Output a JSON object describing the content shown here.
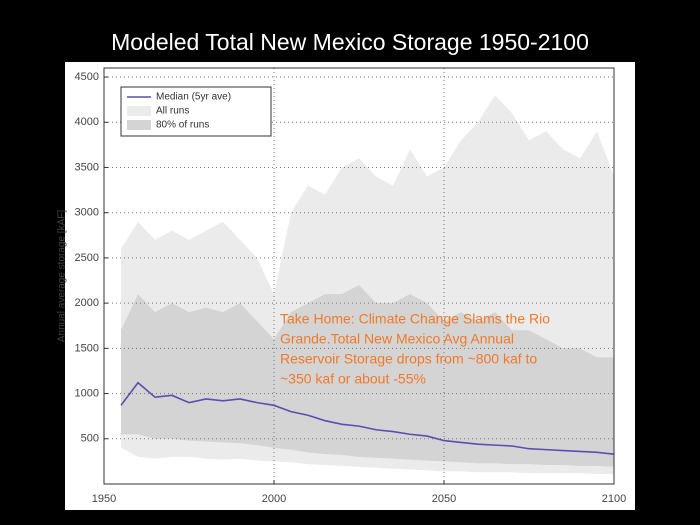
{
  "chart_data": {
    "type": "band-line",
    "title": "Modeled Total New Mexico Storage 1950-2100",
    "ylabel": "Annual average storage [kAF]",
    "xlim": [
      1950,
      2100
    ],
    "xticks": [
      1950,
      2000,
      2050,
      2100
    ],
    "ylim": [
      0,
      4600
    ],
    "yticks": [
      500,
      1000,
      1500,
      2000,
      2500,
      3000,
      3500,
      4000,
      4500
    ],
    "grid": true,
    "legend": "upper left",
    "x": [
      1955,
      1960,
      1965,
      1970,
      1975,
      1980,
      1985,
      1990,
      1995,
      2000,
      2005,
      2010,
      2015,
      2020,
      2025,
      2030,
      2035,
      2040,
      2045,
      2050,
      2055,
      2060,
      2065,
      2070,
      2075,
      2080,
      2085,
      2090,
      2095,
      2100
    ],
    "series": [
      {
        "name": "Median (5yr ave)",
        "color": "#5a4fb0",
        "values": [
          870,
          1120,
          960,
          980,
          900,
          940,
          920,
          940,
          900,
          870,
          800,
          760,
          700,
          660,
          640,
          600,
          580,
          550,
          530,
          480,
          460,
          440,
          430,
          420,
          390,
          380,
          370,
          360,
          350,
          330
        ]
      },
      {
        "name": "All runs",
        "color": "#ebebeb",
        "upper": [
          2600,
          2900,
          2700,
          2800,
          2700,
          2800,
          2900,
          2700,
          2500,
          2100,
          3000,
          3300,
          3200,
          3500,
          3600,
          3400,
          3300,
          3700,
          3400,
          3500,
          3800,
          4000,
          4300,
          4100,
          3800,
          3900,
          3700,
          3600,
          3900,
          3400
        ],
        "lower": [
          400,
          300,
          280,
          300,
          300,
          280,
          270,
          280,
          260,
          250,
          240,
          220,
          210,
          200,
          190,
          180,
          170,
          160,
          150,
          140,
          140,
          130,
          130,
          130,
          120,
          120,
          120,
          120,
          110,
          110
        ]
      },
      {
        "name": "80% of runs",
        "color": "#d4d4d4",
        "upper": [
          1700,
          2100,
          1900,
          2000,
          1900,
          1950,
          1900,
          2000,
          1800,
          1600,
          1900,
          2000,
          2100,
          2100,
          2200,
          2000,
          2000,
          2100,
          2000,
          1800,
          1900,
          1800,
          1900,
          1700,
          1700,
          1600,
          1500,
          1500,
          1400,
          1400
        ],
        "lower": [
          550,
          550,
          500,
          500,
          480,
          470,
          460,
          450,
          430,
          400,
          380,
          350,
          330,
          320,
          300,
          290,
          280,
          270,
          260,
          250,
          240,
          230,
          230,
          220,
          220,
          210,
          210,
          200,
          200,
          190
        ]
      }
    ],
    "annotation": [
      "Take Home: Climate Change Slams the Rio",
      "Grande.Total New Mexico Avg Annual",
      "Reservoir Storage drops from ~800 kaf to",
      "~350 kaf or about -55%"
    ]
  }
}
